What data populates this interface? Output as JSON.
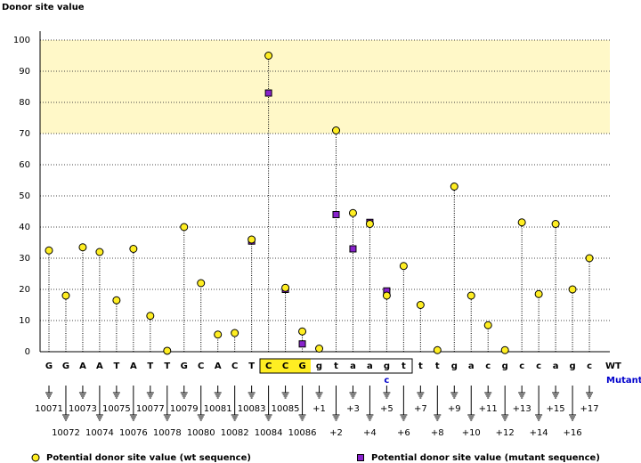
{
  "chart_data": {
    "type": "lollipop",
    "title": "Donor site value",
    "categories": [
      "10071",
      "10072",
      "10073",
      "10074",
      "10075",
      "10076",
      "10077",
      "10078",
      "10079",
      "10080",
      "10081",
      "10082",
      "10083",
      "10084",
      "10085",
      "10086",
      "+1",
      "+2",
      "+3",
      "+4",
      "+5",
      "+6",
      "+7",
      "+8",
      "+9",
      "+10",
      "+11",
      "+12",
      "+13",
      "+14",
      "+15",
      "+16",
      "+17"
    ],
    "sequence": [
      "G",
      "G",
      "A",
      "A",
      "T",
      "A",
      "T",
      "T",
      "G",
      "C",
      "A",
      "C",
      "T",
      "C",
      "C",
      "G",
      "g",
      "t",
      "a",
      "a",
      "g",
      "t",
      "t",
      "t",
      "g",
      "a",
      "c",
      "g",
      "c",
      "c",
      "a",
      "g",
      "c"
    ],
    "sequence_label": "WT",
    "mutant_label": "Mutant",
    "mutant_bases": [
      null,
      null,
      null,
      null,
      null,
      null,
      null,
      null,
      null,
      null,
      null,
      null,
      null,
      null,
      null,
      null,
      null,
      null,
      null,
      null,
      "c",
      null,
      null,
      null,
      null,
      null,
      null,
      null,
      null,
      null,
      null,
      null,
      null
    ],
    "series": [
      {
        "name": "Potential donor site value (wt sequence)",
        "color": "#ffee22",
        "marker": "circle",
        "values": [
          32.5,
          18,
          33.5,
          32,
          16.5,
          33,
          11.5,
          0.3,
          40,
          22,
          5.5,
          6,
          36,
          95,
          20.5,
          6.5,
          1,
          71,
          44.5,
          41,
          18,
          27.5,
          15,
          0.5,
          53,
          18,
          8.5,
          0.5,
          41.5,
          18.5,
          41,
          20,
          30
        ]
      },
      {
        "name": "Potential donor site value (mutant sequence)",
        "color": "#8822cc",
        "marker": "square",
        "values": [
          null,
          null,
          null,
          null,
          null,
          null,
          null,
          null,
          null,
          null,
          null,
          null,
          35.5,
          83,
          20,
          2.5,
          null,
          44,
          33,
          41.5,
          19.5,
          null,
          null,
          null,
          null,
          null,
          null,
          null,
          null,
          null,
          null,
          null,
          null
        ]
      }
    ],
    "ylim": [
      0,
      100
    ],
    "yticks": [
      0,
      10,
      20,
      30,
      40,
      50,
      60,
      70,
      80,
      90,
      100
    ],
    "grid": true,
    "highlight_band": [
      70,
      100
    ]
  }
}
